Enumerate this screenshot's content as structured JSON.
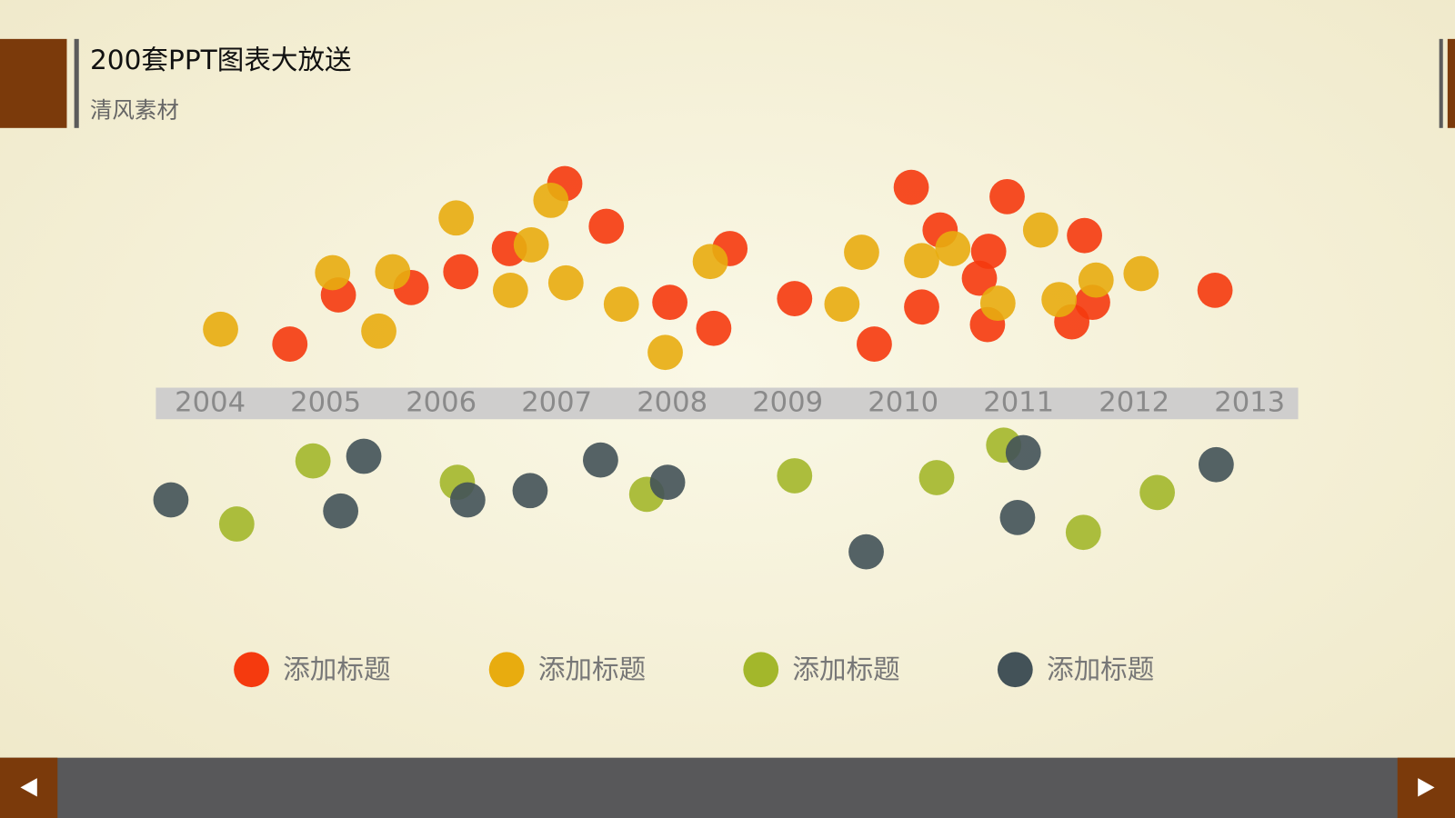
{
  "header": {
    "title": "200套PPT图表大放送",
    "subtitle": "清风素材"
  },
  "chart_data": {
    "type": "scatter",
    "xlim": [
      2003.53,
      2013.42
    ],
    "xticks": [
      2004,
      2005,
      2006,
      2007,
      2008,
      2009,
      2010,
      2011,
      2012,
      2013
    ],
    "ylim": [
      -20,
      27
    ],
    "grid": false,
    "legend": "bottom",
    "series": [
      {
        "name": "添加标题",
        "color": "#f53a0e",
        "x": [
          2004.69,
          2005.11,
          2005.74,
          2006.17,
          2006.59,
          2007.07,
          2007.43,
          2007.98,
          2008.36,
          2008.5,
          2009.06,
          2009.75,
          2010.07,
          2010.16,
          2010.32,
          2010.66,
          2010.74,
          2010.73,
          2010.9,
          2011.46,
          2011.57,
          2011.64,
          2012.7
        ],
        "values": [
          6.3,
          11.6,
          12.4,
          14.1,
          16.6,
          23.6,
          19.0,
          10.8,
          8.0,
          16.6,
          11.2,
          6.3,
          23.2,
          10.3,
          18.6,
          13.4,
          16.3,
          8.4,
          22.2,
          8.7,
          18.0,
          10.8,
          12.1
        ]
      },
      {
        "name": "添加标题",
        "color": "#e8ac0f",
        "x": [
          2004.09,
          2005.06,
          2005.46,
          2005.58,
          2006.13,
          2006.6,
          2006.78,
          2006.95,
          2007.08,
          2007.56,
          2007.94,
          2008.33,
          2009.47,
          2009.64,
          2010.16,
          2010.43,
          2010.82,
          2011.19,
          2011.35,
          2011.67,
          2012.06
        ],
        "values": [
          7.9,
          14.0,
          7.7,
          14.1,
          19.9,
          12.1,
          17.0,
          21.8,
          12.9,
          10.6,
          5.4,
          15.2,
          10.6,
          16.2,
          15.3,
          16.6,
          10.7,
          18.6,
          11.1,
          13.2,
          13.9
        ]
      },
      {
        "name": "添加标题",
        "color": "#a3b72b",
        "x": [
          2004.23,
          2004.89,
          2006.14,
          2007.78,
          2009.06,
          2010.29,
          2010.87,
          2011.56,
          2012.2
        ],
        "values": [
          -13.1,
          -6.3,
          -8.6,
          -9.9,
          -7.9,
          -8.1,
          -4.6,
          -14.0,
          -9.7
        ]
      },
      {
        "name": "添加标题",
        "color": "#435258",
        "x": [
          2003.66,
          2005.33,
          2005.13,
          2006.23,
          2006.77,
          2007.38,
          2007.96,
          2009.68,
          2011.04,
          2010.99,
          2012.71
        ],
        "values": [
          -10.5,
          -5.8,
          -11.7,
          -10.5,
          -9.5,
          -6.2,
          -8.6,
          -16.1,
          -5.4,
          -12.4,
          -6.7
        ]
      }
    ]
  }
}
